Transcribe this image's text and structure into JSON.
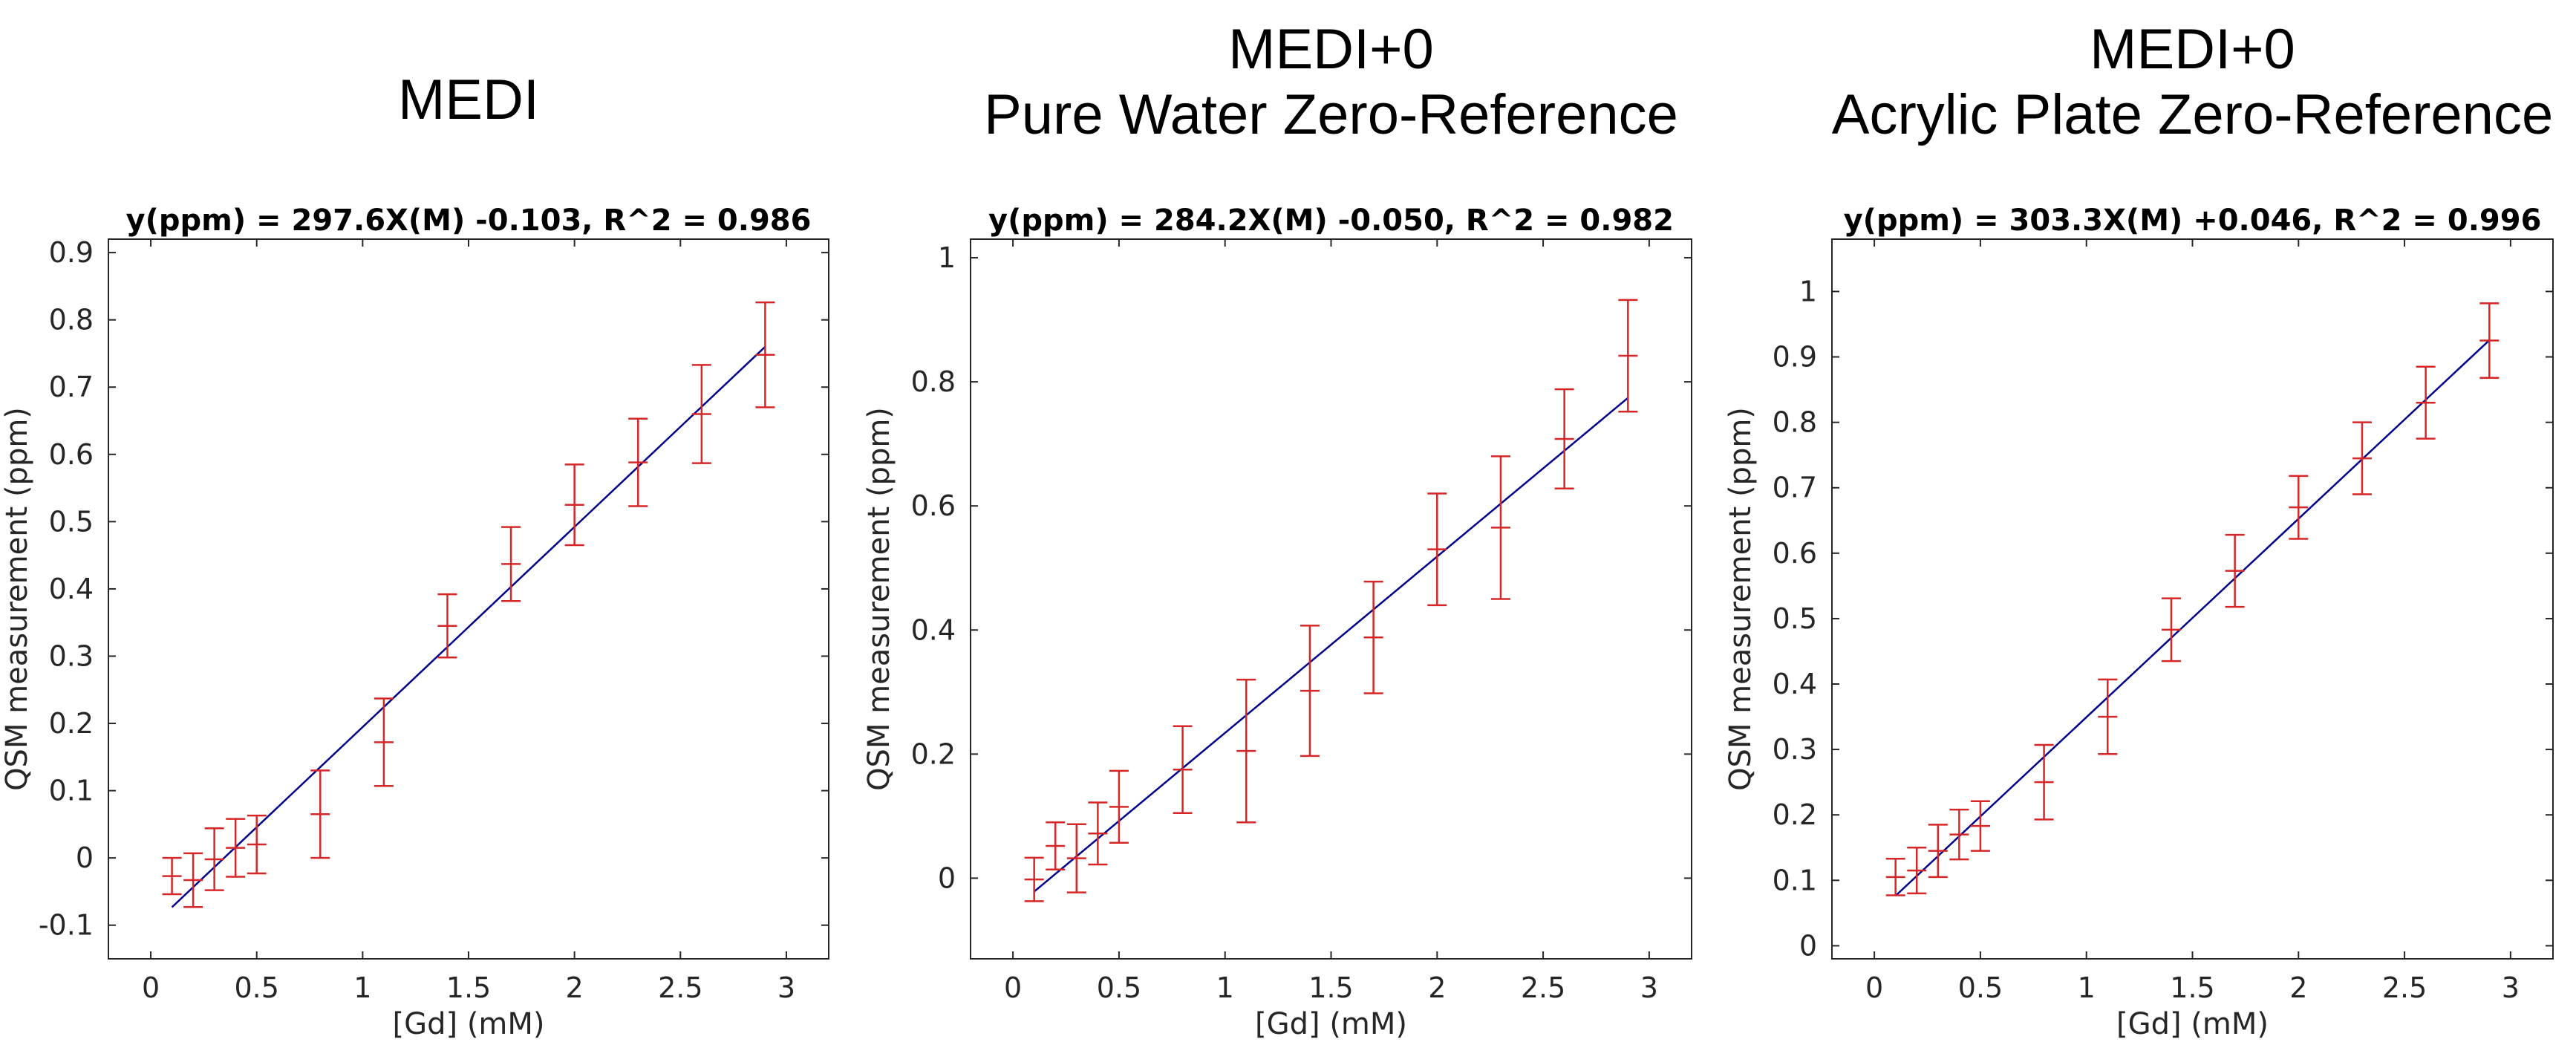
{
  "chart_data": [
    {
      "type": "scatter",
      "heading": [
        "MEDI"
      ],
      "title": "y(ppm) = 297.6X(M) -0.103, R^2 = 0.986",
      "xlabel": "[Gd] (mM)",
      "ylabel": "QSM measurement (ppm)",
      "xlim": [
        -0.2,
        3.2
      ],
      "ylim": [
        -0.15,
        0.92
      ],
      "xticks": [
        0,
        0.5,
        1,
        1.5,
        2,
        2.5,
        3
      ],
      "xticklabels": [
        "0",
        "0.5",
        "1",
        "1.5",
        "2",
        "2.5",
        "3"
      ],
      "yticks": [
        -0.1,
        0,
        0.1,
        0.2,
        0.3,
        0.4,
        0.5,
        0.6,
        0.7,
        0.8,
        0.9
      ],
      "yticklabels": [
        "-0.1",
        "0",
        "0.1",
        "0.2",
        "0.3",
        "0.4",
        "0.5",
        "0.6",
        "0.7",
        "0.8",
        "0.9"
      ],
      "fit": {
        "slope": 0.2976,
        "intercept": -0.103,
        "x_range": [
          0.1,
          2.9
        ]
      },
      "x": [
        0.1,
        0.2,
        0.3,
        0.4,
        0.5,
        0.8,
        1.1,
        1.4,
        1.7,
        2.0,
        2.3,
        2.6,
        2.9
      ],
      "y": [
        -0.027,
        -0.033,
        -0.002,
        0.015,
        0.02,
        0.065,
        0.172,
        0.345,
        0.437,
        0.525,
        0.588,
        0.66,
        0.748
      ],
      "err": [
        0.027,
        0.04,
        0.046,
        0.043,
        0.043,
        0.065,
        0.065,
        0.047,
        0.055,
        0.06,
        0.065,
        0.073,
        0.078
      ],
      "series_color": "#d62728",
      "fit_color": "#00008b"
    },
    {
      "type": "scatter",
      "heading": [
        "MEDI+0",
        "Pure Water Zero-Reference"
      ],
      "title": "y(ppm) = 284.2X(M) -0.050, R^2 = 0.982",
      "xlabel": "[Gd] (mM)",
      "ylabel": "QSM measurement (ppm)",
      "xlim": [
        -0.2,
        3.2
      ],
      "ylim": [
        -0.13,
        1.03
      ],
      "xticks": [
        0,
        0.5,
        1,
        1.5,
        2,
        2.5,
        3
      ],
      "xticklabels": [
        "0",
        "0.5",
        "1",
        "1.5",
        "2",
        "2.5",
        "3"
      ],
      "yticks": [
        0,
        0.2,
        0.4,
        0.6,
        0.8,
        1
      ],
      "yticklabels": [
        "0",
        "0.2",
        "0.4",
        "0.6",
        "0.8",
        "1"
      ],
      "fit": {
        "slope": 0.2842,
        "intercept": -0.05,
        "x_range": [
          0.1,
          2.9
        ]
      },
      "x": [
        0.1,
        0.2,
        0.3,
        0.4,
        0.5,
        0.8,
        1.1,
        1.4,
        1.7,
        2.0,
        2.3,
        2.6,
        2.9
      ],
      "y": [
        -0.002,
        0.052,
        0.032,
        0.072,
        0.115,
        0.175,
        0.205,
        0.302,
        0.388,
        0.53,
        0.565,
        0.708,
        0.842
      ],
      "err": [
        0.035,
        0.038,
        0.055,
        0.05,
        0.058,
        0.07,
        0.115,
        0.105,
        0.09,
        0.09,
        0.115,
        0.08,
        0.09
      ],
      "series_color": "#d62728",
      "fit_color": "#00008b"
    },
    {
      "type": "scatter",
      "heading": [
        "MEDI+0",
        "Acrylic Plate Zero-Reference"
      ],
      "title": "y(ppm) = 303.3X(M) +0.046, R^2 = 0.996",
      "xlabel": "[Gd] (mM)",
      "ylabel": "QSM measurement (ppm)",
      "xlim": [
        -0.2,
        3.2
      ],
      "ylim": [
        -0.02,
        1.08
      ],
      "xticks": [
        0,
        0.5,
        1,
        1.5,
        2,
        2.5,
        3
      ],
      "xticklabels": [
        "0",
        "0.5",
        "1",
        "1.5",
        "2",
        "2.5",
        "3"
      ],
      "yticks": [
        0,
        0.1,
        0.2,
        0.3,
        0.4,
        0.5,
        0.6,
        0.7,
        0.8,
        0.9,
        1
      ],
      "yticklabels": [
        "0",
        "0.1",
        "0.2",
        "0.3",
        "0.4",
        "0.5",
        "0.6",
        "0.7",
        "0.8",
        "0.9",
        "1"
      ],
      "fit": {
        "slope": 0.3033,
        "intercept": 0.046,
        "x_range": [
          0.1,
          2.9
        ]
      },
      "x": [
        0.1,
        0.2,
        0.3,
        0.4,
        0.5,
        0.8,
        1.1,
        1.4,
        1.7,
        2.0,
        2.3,
        2.6,
        2.9
      ],
      "y": [
        0.105,
        0.115,
        0.145,
        0.17,
        0.183,
        0.25,
        0.35,
        0.483,
        0.573,
        0.67,
        0.745,
        0.83,
        0.925
      ],
      "err": [
        0.028,
        0.035,
        0.04,
        0.038,
        0.038,
        0.057,
        0.057,
        0.048,
        0.055,
        0.048,
        0.055,
        0.055,
        0.057
      ],
      "series_color": "#d62728",
      "fit_color": "#00008b"
    }
  ]
}
